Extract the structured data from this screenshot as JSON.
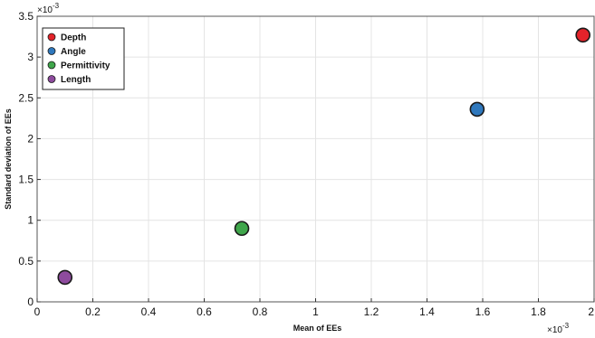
{
  "chart_data": {
    "type": "scatter",
    "xlabel": "Mean of EEs",
    "ylabel": "Standard deviation of EEs",
    "x_exponent_label": "×10",
    "x_exponent_power": "-3",
    "y_exponent_label": "×10",
    "y_exponent_power": "-3",
    "xlim": [
      0,
      2
    ],
    "ylim": [
      0,
      3.5
    ],
    "x_ticks": [
      0,
      0.2,
      0.4,
      0.6,
      0.8,
      1,
      1.2,
      1.4,
      1.6,
      1.8,
      2
    ],
    "x_tick_labels": [
      "0",
      "0.2",
      "0.4",
      "0.6",
      "0.8",
      "1",
      "1.2",
      "1.4",
      "1.6",
      "1.8",
      "2"
    ],
    "y_ticks": [
      0,
      0.5,
      1,
      1.5,
      2,
      2.5,
      3,
      3.5
    ],
    "y_tick_labels": [
      "0",
      "0.5",
      "1",
      "1.5",
      "2",
      "2.5",
      "3",
      "3.5"
    ],
    "grid": true,
    "legend_position": "top-left",
    "series": [
      {
        "name": "Depth",
        "color": "#e3232a",
        "x": [
          1.96
        ],
        "y": [
          3.27
        ]
      },
      {
        "name": "Angle",
        "color": "#2f78bd",
        "x": [
          1.58
        ],
        "y": [
          2.36
        ]
      },
      {
        "name": "Permittivity",
        "color": "#3fa64b",
        "x": [
          0.735
        ],
        "y": [
          0.9
        ]
      },
      {
        "name": "Length",
        "color": "#8e4b9e",
        "x": [
          0.1
        ],
        "y": [
          0.3
        ]
      }
    ]
  }
}
